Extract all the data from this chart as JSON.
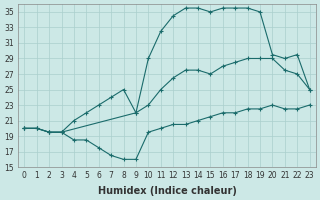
{
  "xlabel": "Humidex (Indice chaleur)",
  "background_color": "#cce8e6",
  "grid_color": "#aacfcd",
  "line_color": "#1a6b6b",
  "xlim": [
    -0.5,
    23.5
  ],
  "ylim": [
    15,
    36
  ],
  "yticks": [
    15,
    17,
    19,
    21,
    23,
    25,
    27,
    29,
    31,
    33,
    35
  ],
  "xticks": [
    0,
    1,
    2,
    3,
    4,
    5,
    6,
    7,
    8,
    9,
    10,
    11,
    12,
    13,
    14,
    15,
    16,
    17,
    18,
    19,
    20,
    21,
    22,
    23
  ],
  "line_bottom_x": [
    0,
    1,
    2,
    3,
    4,
    5,
    6,
    7,
    8,
    9,
    10,
    11,
    12,
    13,
    14,
    15,
    16,
    17,
    18,
    19,
    20,
    21,
    22,
    23
  ],
  "line_bottom_y": [
    20.0,
    20.0,
    19.5,
    19.5,
    18.5,
    18.5,
    17.5,
    16.5,
    16.0,
    16.0,
    19.5,
    20.0,
    20.5,
    20.5,
    21.0,
    21.5,
    22.0,
    22.0,
    22.5,
    22.5,
    23.0,
    22.5,
    22.5,
    23.0
  ],
  "line_mid_x": [
    0,
    1,
    2,
    3,
    4,
    5,
    6,
    7,
    8,
    9,
    10,
    11,
    12,
    13,
    14,
    15,
    16,
    17,
    18,
    19,
    20,
    21,
    22,
    23
  ],
  "line_mid_y": [
    20.0,
    20.0,
    19.5,
    19.5,
    21.0,
    22.0,
    23.0,
    24.0,
    25.0,
    22.0,
    23.0,
    25.0,
    26.5,
    27.5,
    27.5,
    27.0,
    28.0,
    28.5,
    29.0,
    29.0,
    29.0,
    27.5,
    27.0,
    25.0
  ],
  "line_top_x": [
    0,
    1,
    2,
    3,
    9,
    10,
    11,
    12,
    13,
    14,
    15,
    16,
    17,
    18,
    19,
    20,
    21,
    22,
    23
  ],
  "line_top_y": [
    20.0,
    20.0,
    19.5,
    19.5,
    22.0,
    29.0,
    32.5,
    34.5,
    35.5,
    35.5,
    35.0,
    35.5,
    35.5,
    35.5,
    35.0,
    29.5,
    29.0,
    29.5,
    25.0
  ],
  "font_size": 7,
  "xlabel_fontsize": 7,
  "tick_fontsize": 5.5
}
